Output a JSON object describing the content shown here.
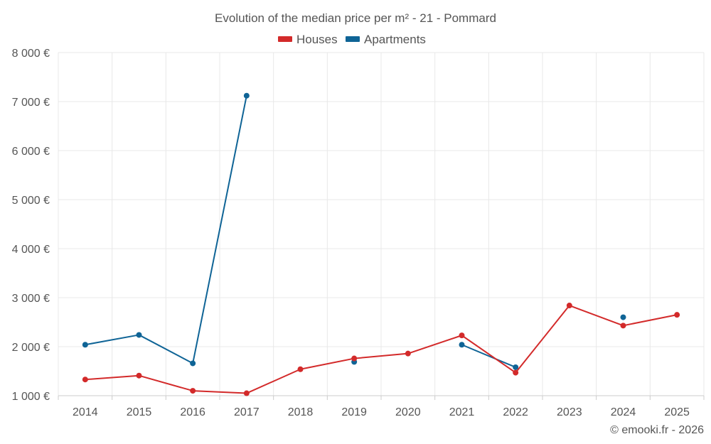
{
  "chart_data": {
    "type": "line",
    "title": "Evolution of the median price per m² - 21 - Pommard",
    "categories": [
      "2014",
      "2015",
      "2016",
      "2017",
      "2018",
      "2019",
      "2020",
      "2021",
      "2022",
      "2023",
      "2024",
      "2025"
    ],
    "ylim": [
      1000,
      8000
    ],
    "yticks": [
      1000,
      2000,
      3000,
      4000,
      5000,
      6000,
      7000,
      8000
    ],
    "ytick_labels": [
      "1 000 €",
      "2 000 €",
      "3 000 €",
      "4 000 €",
      "5 000 €",
      "6 000 €",
      "7 000 €",
      "8 000 €"
    ],
    "series": [
      {
        "name": "Houses",
        "color": "#d32a2a",
        "values": [
          1330,
          1410,
          1100,
          1050,
          1540,
          1760,
          1860,
          2230,
          1470,
          2840,
          2430,
          2650
        ]
      },
      {
        "name": "Apartments",
        "color": "#0f6496",
        "values": [
          2040,
          2240,
          1660,
          7120,
          null,
          1690,
          null,
          2040,
          1580,
          null,
          2600,
          null
        ]
      }
    ],
    "grid": true,
    "legend": "top-center"
  },
  "credit": "© emooki.fr - 2026"
}
